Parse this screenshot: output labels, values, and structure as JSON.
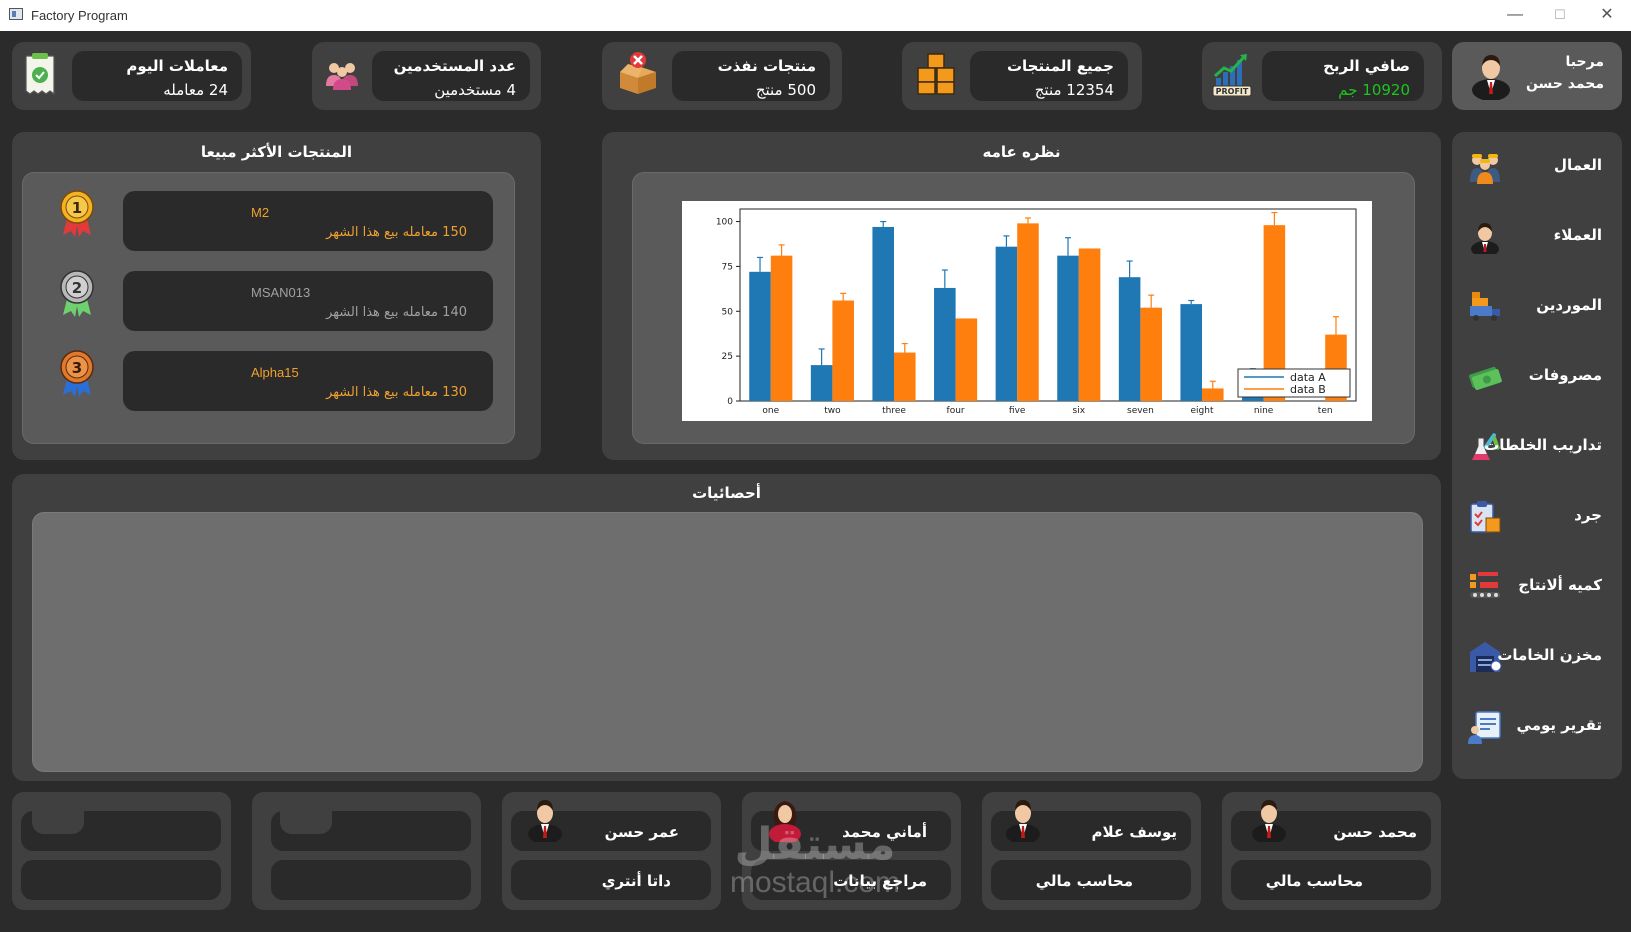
{
  "window": {
    "title": "Factory Program",
    "controls": [
      "—",
      "☐",
      "✕"
    ]
  },
  "welcome": {
    "greeting": "مرحبا",
    "user_name": "محمد حسن"
  },
  "stats": [
    {
      "title": "صافي الربح",
      "value": "10920 جم",
      "value_color": "#1ec51e",
      "icon": "profit-chart-icon"
    },
    {
      "title": "جميع المنتجات",
      "value": "12354 منتج",
      "icon": "boxes-icon"
    },
    {
      "title": "منتجات نفذت",
      "value": "500 منتج",
      "icon": "empty-box-icon"
    },
    {
      "title": "عدد المستخدمين",
      "value": "4 مستخدمين",
      "icon": "users-icon"
    },
    {
      "title": "معاملات اليوم",
      "value": "24 معامله",
      "icon": "receipt-icon"
    }
  ],
  "sidebar": {
    "items": [
      {
        "label": "العمال",
        "icon": "workers-icon"
      },
      {
        "label": "العملاء",
        "icon": "client-icon"
      },
      {
        "label": "الموردين",
        "icon": "supplier-truck-icon"
      },
      {
        "label": "مصروفات",
        "icon": "money-icon"
      },
      {
        "label": "تداريب الخلطات",
        "icon": "lab-flask-icon"
      },
      {
        "label": "جرد",
        "icon": "inventory-clipboard-icon"
      },
      {
        "label": "كميه ألانتاج",
        "icon": "production-line-icon"
      },
      {
        "label": "مخزن الخامات",
        "icon": "warehouse-icon"
      },
      {
        "label": "تقرير يومي",
        "icon": "daily-report-icon"
      }
    ]
  },
  "top_products": {
    "title": "المنتجات الأكثر مبيعا",
    "items": [
      {
        "rank": "1",
        "name": "M2",
        "sales": "150 معامله بيع هذا الشهر",
        "color": "#f0a030"
      },
      {
        "rank": "2",
        "name": "MSAN013",
        "sales": "140 معامله بيع هذا الشهر",
        "color": "#a0a0a0"
      },
      {
        "rank": "3",
        "name": "Alpha15",
        "sales": "130 معامله بيع هذا الشهر",
        "color": "#f0a030"
      }
    ]
  },
  "overview": {
    "title": "نظره عامه"
  },
  "chart_data": {
    "type": "bar",
    "categories": [
      "one",
      "two",
      "three",
      "four",
      "five",
      "six",
      "seven",
      "eight",
      "nine",
      "ten"
    ],
    "series": [
      {
        "name": "data A",
        "color": "#1f77b4",
        "values": [
          72,
          20,
          97,
          63,
          86,
          81,
          69,
          54,
          12,
          0
        ],
        "errors": [
          8,
          9,
          3,
          10,
          6,
          10,
          9,
          2,
          6,
          0
        ]
      },
      {
        "name": "data B",
        "color": "#ff7f0e",
        "values": [
          81,
          56,
          27,
          46,
          99,
          85,
          52,
          7,
          98,
          37
        ],
        "errors": [
          6,
          4,
          5,
          0,
          3,
          0,
          7,
          4,
          7,
          10
        ]
      }
    ],
    "yticks": [
      0,
      25,
      50,
      75,
      100
    ],
    "ylim": [
      0,
      107
    ],
    "legend": "lower-right"
  },
  "statistics": {
    "title": "أحصائيات"
  },
  "employees": [
    {
      "name": "محمد حسن",
      "role": "محاسب مالي",
      "gender": "male"
    },
    {
      "name": "يوسف علام",
      "role": "محاسب مالي",
      "gender": "male"
    },
    {
      "name": "أماني محمد",
      "role": "مراجع بيانات",
      "gender": "female"
    },
    {
      "name": "عمر حسن",
      "role": "داتا أنتري",
      "gender": "male"
    }
  ],
  "watermark": {
    "arabic": "مستقل",
    "latin": "mostaql.com"
  }
}
